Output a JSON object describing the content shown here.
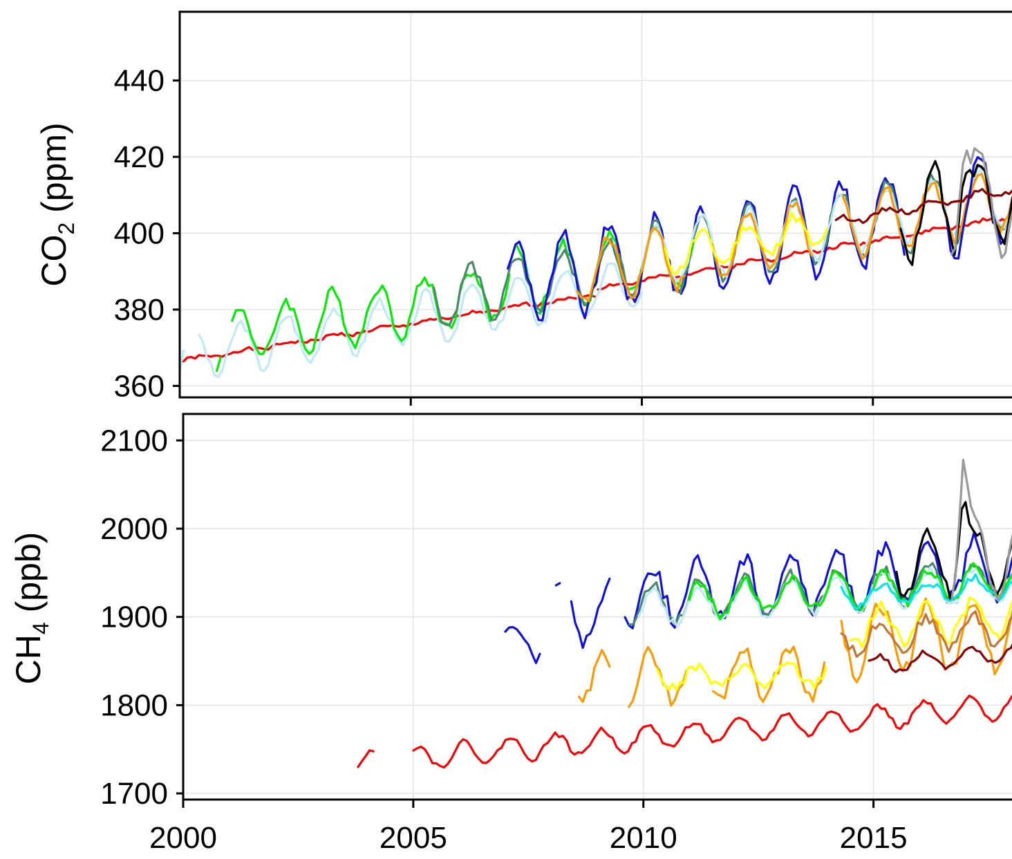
{
  "chart_data": [
    {
      "type": "line",
      "panel": "top",
      "ylabel_main": "CO",
      "ylabel_sub": "2",
      "ylabel_unit": " (ppm)",
      "xlim": [
        2000,
        2018.1
      ],
      "ylim": [
        357,
        458
      ],
      "yticks": [
        360,
        380,
        400,
        420,
        440
      ],
      "xticks": [
        2005,
        2010,
        2015
      ],
      "grid": true,
      "series": [
        {
          "color": "#ff0000",
          "start": 2000.0,
          "end": 2009.0,
          "base": 366.5,
          "trend": 1.95,
          "amp": 0.4,
          "phase": 0.35,
          "noise": 0.5,
          "seed": 1
        },
        {
          "color": "#ff0000",
          "start": 2009.05,
          "end": 2018.1,
          "base": 366.5,
          "trend": 2.1,
          "amp": 0.4,
          "phase": 0.35,
          "noise": 0.5,
          "seed": 2
        },
        {
          "color": "#bfe9f7",
          "start": 2000.0,
          "end": 2010.0,
          "base": 367.5,
          "trend": 1.95,
          "amp": 6.5,
          "phase": 0.32,
          "noise": 1.2,
          "seed": 3,
          "gaps": [
            [
              2000.1,
              2000.35
            ]
          ]
        },
        {
          "color": "#00ee00",
          "start": 2000.8,
          "end": 2007.2,
          "base": 371.0,
          "trend": 1.95,
          "amp": 7.0,
          "phase": 0.3,
          "noise": 1.8,
          "seed": 4,
          "gaps": [
            [
              2000.95,
              2001.1
            ]
          ]
        },
        {
          "color": "#00ee00",
          "start": 2007.3,
          "end": 2011.2,
          "base": 373.0,
          "trend": 1.95,
          "amp": 8.0,
          "phase": 0.3,
          "noise": 1.8,
          "seed": 5
        },
        {
          "color": "#4a8a6a",
          "start": 2005.5,
          "end": 2009.7,
          "base": 372.0,
          "trend": 1.95,
          "amp": 7.5,
          "phase": 0.3,
          "noise": 1.5,
          "seed": 6
        },
        {
          "color": "#1010e0",
          "start": 2007.1,
          "end": 2015.7,
          "base": 372.5,
          "trend": 2.05,
          "amp": 11.0,
          "phase": 0.3,
          "noise": 2.2,
          "seed": 7
        },
        {
          "color": "#4a8a6a",
          "start": 2009.5,
          "end": 2018.1,
          "base": 372.5,
          "trend": 2.05,
          "amp": 9.0,
          "phase": 0.3,
          "noise": 1.5,
          "seed": 8
        },
        {
          "color": "#bfe9f7",
          "start": 2010.0,
          "end": 2018.1,
          "base": 373.0,
          "trend": 2.05,
          "amp": 8.0,
          "phase": 0.3,
          "noise": 1.2,
          "seed": 9
        },
        {
          "color": "#ff9900",
          "start": 2008.6,
          "end": 2018.1,
          "base": 371.5,
          "trend": 2.1,
          "amp": 8.0,
          "phase": 0.28,
          "noise": 1.5,
          "seed": 10,
          "gaps": [
            [
              2011.0,
              2011.5
            ],
            [
              2013.7,
              2014.3
            ]
          ]
        },
        {
          "color": "#ffff00",
          "start": 2010.5,
          "end": 2014.0,
          "base": 372.0,
          "trend": 2.1,
          "amp": 4.5,
          "phase": 0.28,
          "noise": 1.5,
          "seed": 11
        },
        {
          "color": "#1010e0",
          "start": 2016.6,
          "end": 2018.1,
          "base": 372.5,
          "trend": 2.05,
          "amp": 13.0,
          "phase": 0.3,
          "noise": 2.0,
          "seed": 12
        },
        {
          "color": "#000000",
          "start": 2015.6,
          "end": 2018.1,
          "base": 372.5,
          "trend": 2.05,
          "amp": 12.0,
          "phase": 0.3,
          "noise": 2.5,
          "seed": 13,
          "spike": [
            2016.95,
            14
          ]
        },
        {
          "color": "#999999",
          "start": 2016.7,
          "end": 2018.1,
          "base": 372.5,
          "trend": 2.05,
          "amp": 15.0,
          "phase": 0.3,
          "noise": 2.5,
          "seed": 14,
          "spike": [
            2016.95,
            22
          ]
        },
        {
          "color": "#8b0000",
          "start": 2014.2,
          "end": 2018.1,
          "base": 371.0,
          "trend": 2.25,
          "amp": 1.0,
          "phase": 0.3,
          "noise": 0.6,
          "seed": 15
        }
      ]
    },
    {
      "type": "line",
      "panel": "bottom",
      "ylabel_main": "CH",
      "ylabel_sub": "4",
      "ylabel_unit": " (ppb)",
      "xlim": [
        2000,
        2018.1
      ],
      "ylim": [
        1693,
        2130
      ],
      "yticks": [
        1700,
        1800,
        1900,
        2000,
        2100
      ],
      "xticks": [
        2000,
        2005,
        2010,
        2015
      ],
      "grid": true,
      "series": [
        {
          "color": "#ff0000",
          "start": 2003.8,
          "end": 2004.2,
          "base": 1718,
          "trend": 4.5,
          "amp": 12,
          "phase": 0.1,
          "noise": 3,
          "seed": 21
        },
        {
          "color": "#ff0000",
          "start": 2005.0,
          "end": 2018.1,
          "base": 1718,
          "trend": 4.5,
          "amp": 13,
          "phase": 0.1,
          "noise": 3,
          "seed": 22
        },
        {
          "color": "#1010e0",
          "start": 2007.0,
          "end": 2007.8,
          "base": 1870,
          "trend": 0,
          "amp": 15,
          "phase": 0.2,
          "noise": 10,
          "seed": 23
        },
        {
          "color": "#1010e0",
          "start": 2008.1,
          "end": 2009.3,
          "base": 1905,
          "trend": 0,
          "amp": 30,
          "phase": 0.2,
          "noise": 12,
          "seed": 24,
          "gaps": [
            [
              2008.2,
              2008.35
            ]
          ]
        },
        {
          "color": "#1010e0",
          "start": 2009.6,
          "end": 2018.1,
          "base": 1885,
          "trend": 4.0,
          "amp": 32,
          "phase": 0.2,
          "noise": 10,
          "seed": 25
        },
        {
          "color": "#4a8a6a",
          "start": 2009.7,
          "end": 2018.1,
          "base": 1880,
          "trend": 3.5,
          "amp": 22,
          "phase": 0.2,
          "noise": 6,
          "seed": 26
        },
        {
          "color": "#bfe9f7",
          "start": 2009.9,
          "end": 2018.1,
          "base": 1875,
          "trend": 3.5,
          "amp": 20,
          "phase": 0.2,
          "noise": 5,
          "seed": 27
        },
        {
          "color": "#00ee00",
          "start": 2011.0,
          "end": 2018.1,
          "base": 1880,
          "trend": 3.5,
          "amp": 18,
          "phase": 0.2,
          "noise": 6,
          "seed": 28
        },
        {
          "color": "#ff9900",
          "start": 2008.6,
          "end": 2014.0,
          "base": 1812,
          "trend": 2.0,
          "amp": 28,
          "phase": 0.15,
          "noise": 8,
          "seed": 29,
          "gaps": [
            [
              2009.3,
              2009.6
            ],
            [
              2011.0,
              2011.5
            ]
          ]
        },
        {
          "color": "#ffff00",
          "start": 2010.3,
          "end": 2014.0,
          "base": 1815,
          "trend": 1.5,
          "amp": 12,
          "phase": 0.15,
          "noise": 6,
          "seed": 30
        },
        {
          "color": "#00e5ee",
          "start": 2014.3,
          "end": 2018.1,
          "base": 1880,
          "trend": 3.0,
          "amp": 12,
          "phase": 0.2,
          "noise": 5,
          "seed": 31
        },
        {
          "color": "#ff9900",
          "start": 2014.3,
          "end": 2018.1,
          "base": 1830,
          "trend": 3.0,
          "amp": 40,
          "phase": 0.15,
          "noise": 10,
          "seed": 32
        },
        {
          "color": "#ffff00",
          "start": 2014.5,
          "end": 2018.1,
          "base": 1845,
          "trend": 3.0,
          "amp": 20,
          "phase": 0.15,
          "noise": 8,
          "seed": 33
        },
        {
          "color": "#c87533",
          "start": 2014.3,
          "end": 2018.1,
          "base": 1825,
          "trend": 3.5,
          "amp": 18,
          "phase": 0.15,
          "noise": 6,
          "seed": 34
        },
        {
          "color": "#8b0000",
          "start": 2014.9,
          "end": 2018.1,
          "base": 1770,
          "trend": 5.0,
          "amp": 10,
          "phase": 0.1,
          "noise": 3,
          "seed": 35
        },
        {
          "color": "#000000",
          "start": 2015.5,
          "end": 2018.1,
          "base": 1895,
          "trend": 4.0,
          "amp": 35,
          "phase": 0.2,
          "noise": 8,
          "seed": 36,
          "spike": [
            2016.95,
            70
          ]
        },
        {
          "color": "#999999",
          "start": 2016.7,
          "end": 2018.1,
          "base": 1895,
          "trend": 4.0,
          "amp": 45,
          "phase": 0.2,
          "noise": 8,
          "seed": 37,
          "spike": [
            2016.95,
            110
          ]
        }
      ]
    }
  ]
}
